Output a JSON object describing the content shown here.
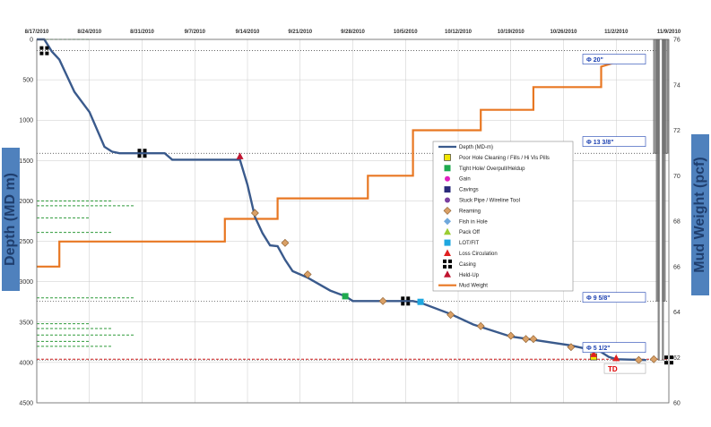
{
  "chart_data": {
    "type": "line",
    "x_ticks": [
      "8/17/2010",
      "8/24/2010",
      "8/31/2010",
      "9/7/2010",
      "9/14/2010",
      "9/21/2010",
      "9/28/2010",
      "10/5/2010",
      "10/12/2010",
      "10/19/2010",
      "10/26/2010",
      "11/2/2010",
      "11/9/2010"
    ],
    "xlim": [
      "8/17/2010",
      "11/9/2010"
    ],
    "y_left": {
      "label": "Depth (MD m)",
      "lim": [
        0,
        4500
      ],
      "ticks": [
        0,
        500,
        1000,
        1500,
        2000,
        2500,
        3000,
        3500,
        4000,
        4500
      ],
      "inverted": true
    },
    "y_right": {
      "label": "Mud Weight (pcf)",
      "lim": [
        60,
        76
      ],
      "ticks": [
        60,
        62,
        64,
        66,
        68,
        70,
        72,
        74,
        76
      ]
    },
    "colors": {
      "depth": "#3a5a8c",
      "mud": "#e87722",
      "axis_title_bg": "#4f81bd"
    },
    "series": [
      {
        "name": "Depth (MD-m)",
        "axis": "left",
        "points": [
          [
            "8/17/2010",
            0
          ],
          [
            "8/18/2010",
            0
          ],
          [
            "8/19/2010",
            150
          ],
          [
            "8/20/2010",
            250
          ],
          [
            "8/21/2010",
            450
          ],
          [
            "8/22/2010",
            650
          ],
          [
            "8/24/2010",
            900
          ],
          [
            "8/26/2010",
            1330
          ],
          [
            "8/27/2010",
            1390
          ],
          [
            "8/28/2010",
            1410
          ],
          [
            "9/3/2010",
            1410
          ],
          [
            "9/4/2010",
            1490
          ],
          [
            "9/13/2010",
            1490
          ],
          [
            "9/14/2010",
            1800
          ],
          [
            "9/15/2010",
            2200
          ],
          [
            "9/16/2010",
            2400
          ],
          [
            "9/17/2010",
            2550
          ],
          [
            "9/18/2010",
            2560
          ],
          [
            "9/19/2010",
            2730
          ],
          [
            "9/20/2010",
            2870
          ],
          [
            "9/22/2010",
            2950
          ],
          [
            "9/25/2010",
            3110
          ],
          [
            "9/27/2010",
            3180
          ],
          [
            "9/28/2010",
            3240
          ],
          [
            "10/6/2010",
            3240
          ],
          [
            "10/7/2010",
            3260
          ],
          [
            "10/11/2010",
            3400
          ],
          [
            "10/14/2010",
            3530
          ],
          [
            "10/19/2010",
            3680
          ],
          [
            "10/22/2010",
            3720
          ],
          [
            "10/27/2010",
            3790
          ],
          [
            "10/31/2010",
            3870
          ],
          [
            "11/1/2010",
            3930
          ],
          [
            "11/2/2010",
            3960
          ],
          [
            "11/6/2010",
            3970
          ]
        ]
      },
      {
        "name": "Mud Weight",
        "axis": "right",
        "points": [
          [
            "8/17/2010",
            66
          ],
          [
            "8/20/2010",
            66
          ],
          [
            "8/20/2010",
            67.1
          ],
          [
            "9/11/2010",
            67.1
          ],
          [
            "9/11/2010",
            68.1
          ],
          [
            "9/18/2010",
            68.1
          ],
          [
            "9/18/2010",
            69
          ],
          [
            "9/30/2010",
            69
          ],
          [
            "9/30/2010",
            70
          ],
          [
            "10/6/2010",
            70
          ],
          [
            "10/6/2010",
            72
          ],
          [
            "10/15/2010",
            72
          ],
          [
            "10/15/2010",
            72.9
          ],
          [
            "10/22/2010",
            72.9
          ],
          [
            "10/22/2010",
            73.9
          ],
          [
            "10/31/2010",
            73.9
          ],
          [
            "10/31/2010",
            74.8
          ],
          [
            "11/2/2010",
            75
          ],
          [
            "11/3/2010",
            75.1
          ]
        ]
      }
    ],
    "events": [
      {
        "type": "Casing",
        "date": "8/18/2010",
        "depth": 140
      },
      {
        "type": "Casing",
        "date": "8/31/2010",
        "depth": 1410
      },
      {
        "type": "Held-Up",
        "date": "9/13/2010",
        "depth": 1450
      },
      {
        "type": "Reaming",
        "date": "9/15/2010",
        "depth": 2150
      },
      {
        "type": "Reaming",
        "date": "9/19/2010",
        "depth": 2520
      },
      {
        "type": "Reaming",
        "date": "9/22/2010",
        "depth": 2910
      },
      {
        "type": "Tight Hole/ Overpull/Heldup",
        "date": "9/27/2010",
        "depth": 3180
      },
      {
        "type": "Reaming",
        "date": "10/2/2010",
        "depth": 3240
      },
      {
        "type": "Casing",
        "date": "10/5/2010",
        "depth": 3240
      },
      {
        "type": "LOT/FIT",
        "date": "10/7/2010",
        "depth": 3250
      },
      {
        "type": "Reaming",
        "date": "10/11/2010",
        "depth": 3410
      },
      {
        "type": "Reaming",
        "date": "10/15/2010",
        "depth": 3550
      },
      {
        "type": "Reaming",
        "date": "10/19/2010",
        "depth": 3670
      },
      {
        "type": "Reaming",
        "date": "10/21/2010",
        "depth": 3710
      },
      {
        "type": "Reaming",
        "date": "10/22/2010",
        "depth": 3710
      },
      {
        "type": "Reaming",
        "date": "10/27/2010",
        "depth": 3810
      },
      {
        "type": "Poor Hole Cleaning / Fills / Hi Vis Pills",
        "date": "10/30/2010",
        "depth": 3930
      },
      {
        "type": "Loss Circulation",
        "date": "10/30/2010",
        "depth": 3900
      },
      {
        "type": "Loss Circulation",
        "date": "11/2/2010",
        "depth": 3950
      },
      {
        "type": "Reaming",
        "date": "11/5/2010",
        "depth": 3970
      },
      {
        "type": "Reaming",
        "date": "11/7/2010",
        "depth": 3960
      },
      {
        "type": "Casing",
        "date": "11/9/2010",
        "depth": 3970
      }
    ],
    "legend": {
      "position": "center-right",
      "items": [
        {
          "label": "Depth (MD-m)",
          "kind": "line",
          "color": "#3a5a8c"
        },
        {
          "label": "Poor Hole Cleaning / Fills / Hi Vis Pills",
          "kind": "square",
          "color": "#f2e600",
          "stroke": "#222"
        },
        {
          "label": "Tight Hole/ Overpull/Heldup",
          "kind": "square",
          "color": "#1faa4f"
        },
        {
          "label": "Gain",
          "kind": "circle",
          "color": "#e020c0"
        },
        {
          "label": "Cavings",
          "kind": "square",
          "color": "#2a2a7a"
        },
        {
          "label": "Stuck Pipe / Wireline Tool",
          "kind": "circle",
          "color": "#7a3fa0"
        },
        {
          "label": "Reaming",
          "kind": "diamond",
          "color": "#d9a066",
          "stroke": "#8a5a2a"
        },
        {
          "label": "Fish in Hole",
          "kind": "diamond",
          "color": "#6fa8dc"
        },
        {
          "label": "Pack Off",
          "kind": "triangle",
          "color": "#9acd32"
        },
        {
          "label": "LOT/FIT",
          "kind": "square",
          "color": "#1ea7e0"
        },
        {
          "label": "Loss Circulation",
          "kind": "triangle",
          "color": "#e02020"
        },
        {
          "label": "Casing",
          "kind": "casing",
          "color": "#000"
        },
        {
          "label": "Held-Up",
          "kind": "triangle",
          "color": "#c0142f"
        },
        {
          "label": "Mud Weight",
          "kind": "line",
          "color": "#e87722"
        }
      ]
    },
    "casing_labels": [
      {
        "text": "Φ 20\"",
        "depth": 250
      },
      {
        "text": "Φ 13 3/8\"",
        "depth": 1270
      },
      {
        "text": "Φ 9 5/8\"",
        "depth": 3200
      },
      {
        "text": "Φ 5 1/2\"",
        "depth": 3820
      }
    ],
    "td_label": {
      "text": "TD",
      "depth": 4080
    },
    "dashed_green_depths": [
      0,
      2000,
      2060,
      2210,
      2390,
      3200,
      3520,
      3580,
      3660,
      3740,
      3800
    ],
    "dashed_black_depths": [
      140,
      1410,
      3240,
      3970
    ],
    "dashed_red_depth": 3960
  }
}
